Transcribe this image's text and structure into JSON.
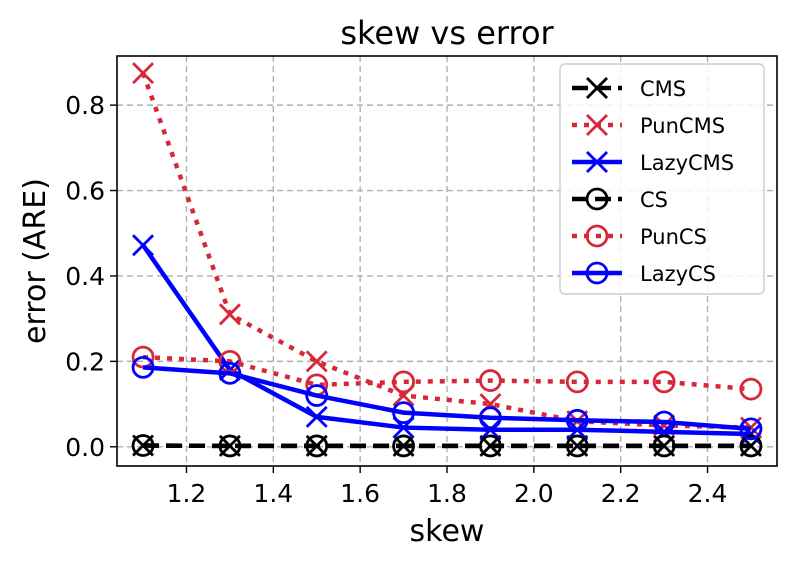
{
  "chart_data": {
    "type": "line",
    "title": "skew vs error",
    "xlabel": "skew",
    "ylabel": "error (ARE)",
    "xlim": [
      1.04,
      2.56
    ],
    "ylim": [
      -0.045,
      0.915
    ],
    "xticks": [
      "1.2",
      "1.4",
      "1.6",
      "1.8",
      "2.0",
      "2.2",
      "2.4"
    ],
    "xtick_values": [
      1.2,
      1.4,
      1.6,
      1.8,
      2.0,
      2.2,
      2.4
    ],
    "yticks": [
      "0.0",
      "0.2",
      "0.4",
      "0.6",
      "0.8"
    ],
    "ytick_values": [
      0.0,
      0.2,
      0.4,
      0.6,
      0.8
    ],
    "grid": true,
    "legend_position": "top-right",
    "x": [
      1.1,
      1.3,
      1.5,
      1.7,
      1.9,
      2.1,
      2.3,
      2.5
    ],
    "series": [
      {
        "name": "CMS",
        "color": "#000000",
        "line": "dashed",
        "marker": "x",
        "values": [
          0.003,
          0.002,
          0.002,
          0.002,
          0.002,
          0.002,
          0.002,
          0.002
        ]
      },
      {
        "name": "PunCMS",
        "color": "#d62839",
        "line": "dotted",
        "marker": "x",
        "values": [
          0.875,
          0.31,
          0.2,
          0.12,
          0.1,
          0.06,
          0.05,
          0.045
        ]
      },
      {
        "name": "LazyCMS",
        "color": "#0000ff",
        "line": "solid",
        "marker": "x",
        "values": [
          0.472,
          0.18,
          0.07,
          0.045,
          0.04,
          0.04,
          0.035,
          0.03
        ]
      },
      {
        "name": "CS",
        "color": "#000000",
        "line": "dashed",
        "marker": "o",
        "values": [
          0.003,
          0.002,
          0.002,
          0.002,
          0.002,
          0.002,
          0.002,
          0.002
        ]
      },
      {
        "name": "PunCS",
        "color": "#d62839",
        "line": "dotted",
        "marker": "o",
        "values": [
          0.21,
          0.2,
          0.145,
          0.152,
          0.155,
          0.152,
          0.152,
          0.135
        ]
      },
      {
        "name": "LazyCS",
        "color": "#0000ff",
        "line": "solid",
        "marker": "o",
        "values": [
          0.186,
          0.172,
          0.12,
          0.08,
          0.068,
          0.062,
          0.058,
          0.042
        ]
      }
    ]
  }
}
